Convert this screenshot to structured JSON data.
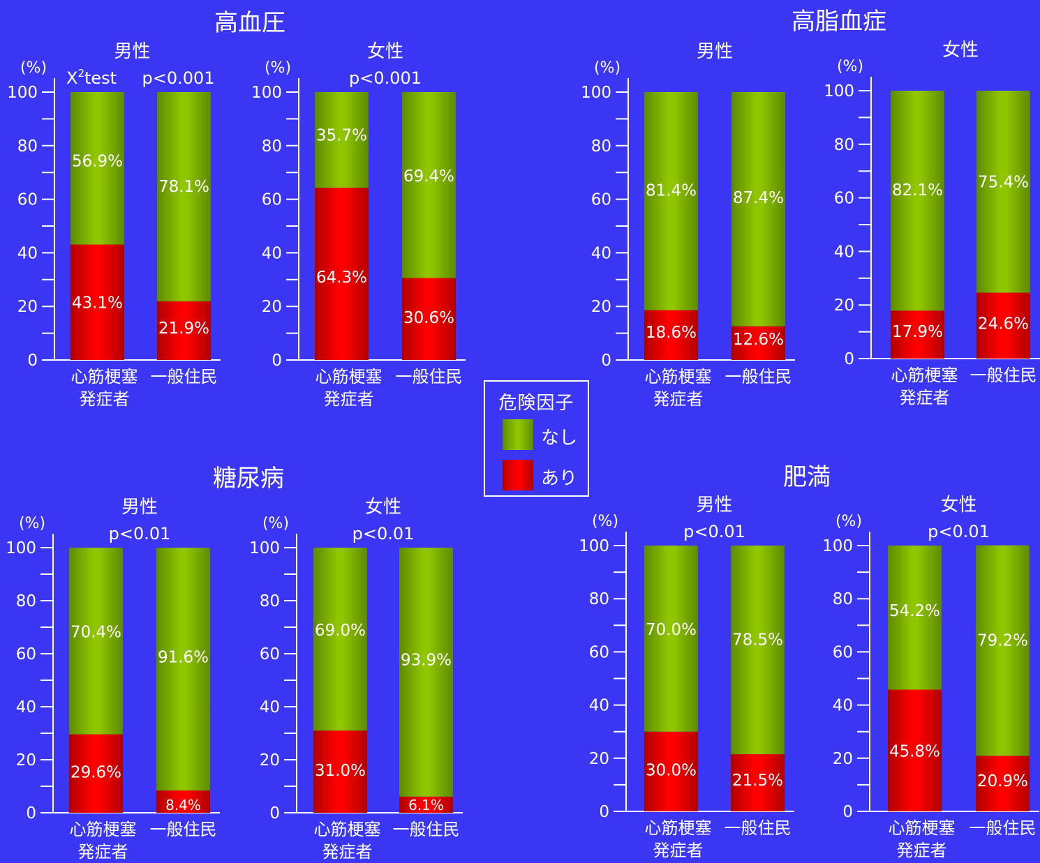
{
  "colors": {
    "background": "#3a36f4",
    "present": "#ff0000",
    "absent": "#8fc600",
    "axis": "#ffffff",
    "text": "#ffffff"
  },
  "legend": {
    "title": "危険因子",
    "items": [
      {
        "label": "なし",
        "color": "#8fc600"
      },
      {
        "label": "あり",
        "color": "#ff0000"
      }
    ]
  },
  "chart_data": [
    {
      "type": "bar",
      "stacked": true,
      "title": "高血圧",
      "subtitle": "男性",
      "annotation_left": "X²test",
      "annotation": "p<0.001",
      "ylabel": "(%)",
      "ylim": [
        0,
        100
      ],
      "yticks": [
        0,
        20,
        40,
        60,
        80,
        100
      ],
      "categories": [
        "心筋梗塞\n発症者",
        "一般住民"
      ],
      "series": [
        {
          "name": "あり",
          "values": [
            43.1,
            21.9
          ],
          "labels": [
            "43.1%",
            "21.9%"
          ]
        },
        {
          "name": "なし",
          "values": [
            56.9,
            78.1
          ],
          "labels": [
            "56.9%",
            "78.1%"
          ]
        }
      ]
    },
    {
      "type": "bar",
      "stacked": true,
      "title": "",
      "subtitle": "女性",
      "annotation": "p<0.001",
      "ylabel": "(%)",
      "ylim": [
        0,
        100
      ],
      "yticks": [
        0,
        20,
        40,
        60,
        80,
        100
      ],
      "categories": [
        "心筋梗塞\n発症者",
        "一般住民"
      ],
      "series": [
        {
          "name": "あり",
          "values": [
            64.3,
            30.6
          ],
          "labels": [
            "64.3%",
            "30.6%"
          ]
        },
        {
          "name": "なし",
          "values": [
            35.7,
            69.4
          ],
          "labels": [
            "35.7%",
            "69.4%"
          ]
        }
      ]
    },
    {
      "type": "bar",
      "stacked": true,
      "title": "高脂血症",
      "subtitle": "男性",
      "annotation": "",
      "ylabel": "(%)",
      "ylim": [
        0,
        100
      ],
      "yticks": [
        0,
        20,
        40,
        60,
        80,
        100
      ],
      "categories": [
        "心筋梗塞\n発症者",
        "一般住民"
      ],
      "series": [
        {
          "name": "あり",
          "values": [
            18.6,
            12.6
          ],
          "labels": [
            "18.6%",
            "12.6%"
          ]
        },
        {
          "name": "なし",
          "values": [
            81.4,
            87.4
          ],
          "labels": [
            "81.4%",
            "87.4%"
          ]
        }
      ]
    },
    {
      "type": "bar",
      "stacked": true,
      "title": "",
      "subtitle": "女性",
      "annotation": "",
      "ylabel": "(%)",
      "ylim": [
        0,
        100
      ],
      "yticks": [
        0,
        20,
        40,
        60,
        80,
        100
      ],
      "categories": [
        "心筋梗塞\n発症者",
        "一般住民"
      ],
      "series": [
        {
          "name": "あり",
          "values": [
            17.9,
            24.6
          ],
          "labels": [
            "17.9%",
            "24.6%"
          ]
        },
        {
          "name": "なし",
          "values": [
            82.1,
            75.4
          ],
          "labels": [
            "82.1%",
            "75.4%"
          ]
        }
      ]
    },
    {
      "type": "bar",
      "stacked": true,
      "title": "糖尿病",
      "subtitle": "男性",
      "annotation": "p<0.01",
      "ylabel": "(%)",
      "ylim": [
        0,
        100
      ],
      "yticks": [
        0,
        20,
        40,
        60,
        80,
        100
      ],
      "categories": [
        "心筋梗塞\n発症者",
        "一般住民"
      ],
      "series": [
        {
          "name": "あり",
          "values": [
            29.6,
            8.4
          ],
          "labels": [
            "29.6%",
            "8.4%"
          ]
        },
        {
          "name": "なし",
          "values": [
            70.4,
            91.6
          ],
          "labels": [
            "70.4%",
            "91.6%"
          ]
        }
      ]
    },
    {
      "type": "bar",
      "stacked": true,
      "title": "",
      "subtitle": "女性",
      "annotation": "p<0.01",
      "ylabel": "(%)",
      "ylim": [
        0,
        100
      ],
      "yticks": [
        0,
        20,
        40,
        60,
        80,
        100
      ],
      "categories": [
        "心筋梗塞\n発症者",
        "一般住民"
      ],
      "series": [
        {
          "name": "あり",
          "values": [
            31.0,
            6.1
          ],
          "labels": [
            "31.0%",
            "6.1%"
          ]
        },
        {
          "name": "なし",
          "values": [
            69.0,
            93.9
          ],
          "labels": [
            "69.0%",
            "93.9%"
          ]
        }
      ]
    },
    {
      "type": "bar",
      "stacked": true,
      "title": "肥満",
      "subtitle": "男性",
      "annotation": "p<0.01",
      "ylabel": "(%)",
      "ylim": [
        0,
        100
      ],
      "yticks": [
        0,
        20,
        40,
        60,
        80,
        100
      ],
      "categories": [
        "心筋梗塞\n発症者",
        "一般住民"
      ],
      "series": [
        {
          "name": "あり",
          "values": [
            30.0,
            21.5
          ],
          "labels": [
            "30.0%",
            "21.5%"
          ]
        },
        {
          "name": "なし",
          "values": [
            70.0,
            78.5
          ],
          "labels": [
            "70.0%",
            "78.5%"
          ]
        }
      ]
    },
    {
      "type": "bar",
      "stacked": true,
      "title": "",
      "subtitle": "女性",
      "annotation": "p<0.01",
      "ylabel": "(%)",
      "ylim": [
        0,
        100
      ],
      "yticks": [
        0,
        20,
        40,
        60,
        80,
        100
      ],
      "categories": [
        "心筋梗塞\n発症者",
        "一般住民"
      ],
      "series": [
        {
          "name": "あり",
          "values": [
            45.8,
            20.9
          ],
          "labels": [
            "45.8%",
            "20.9%"
          ]
        },
        {
          "name": "なし",
          "values": [
            54.2,
            79.2
          ],
          "labels": [
            "54.2%",
            "79.2%"
          ]
        }
      ]
    }
  ]
}
